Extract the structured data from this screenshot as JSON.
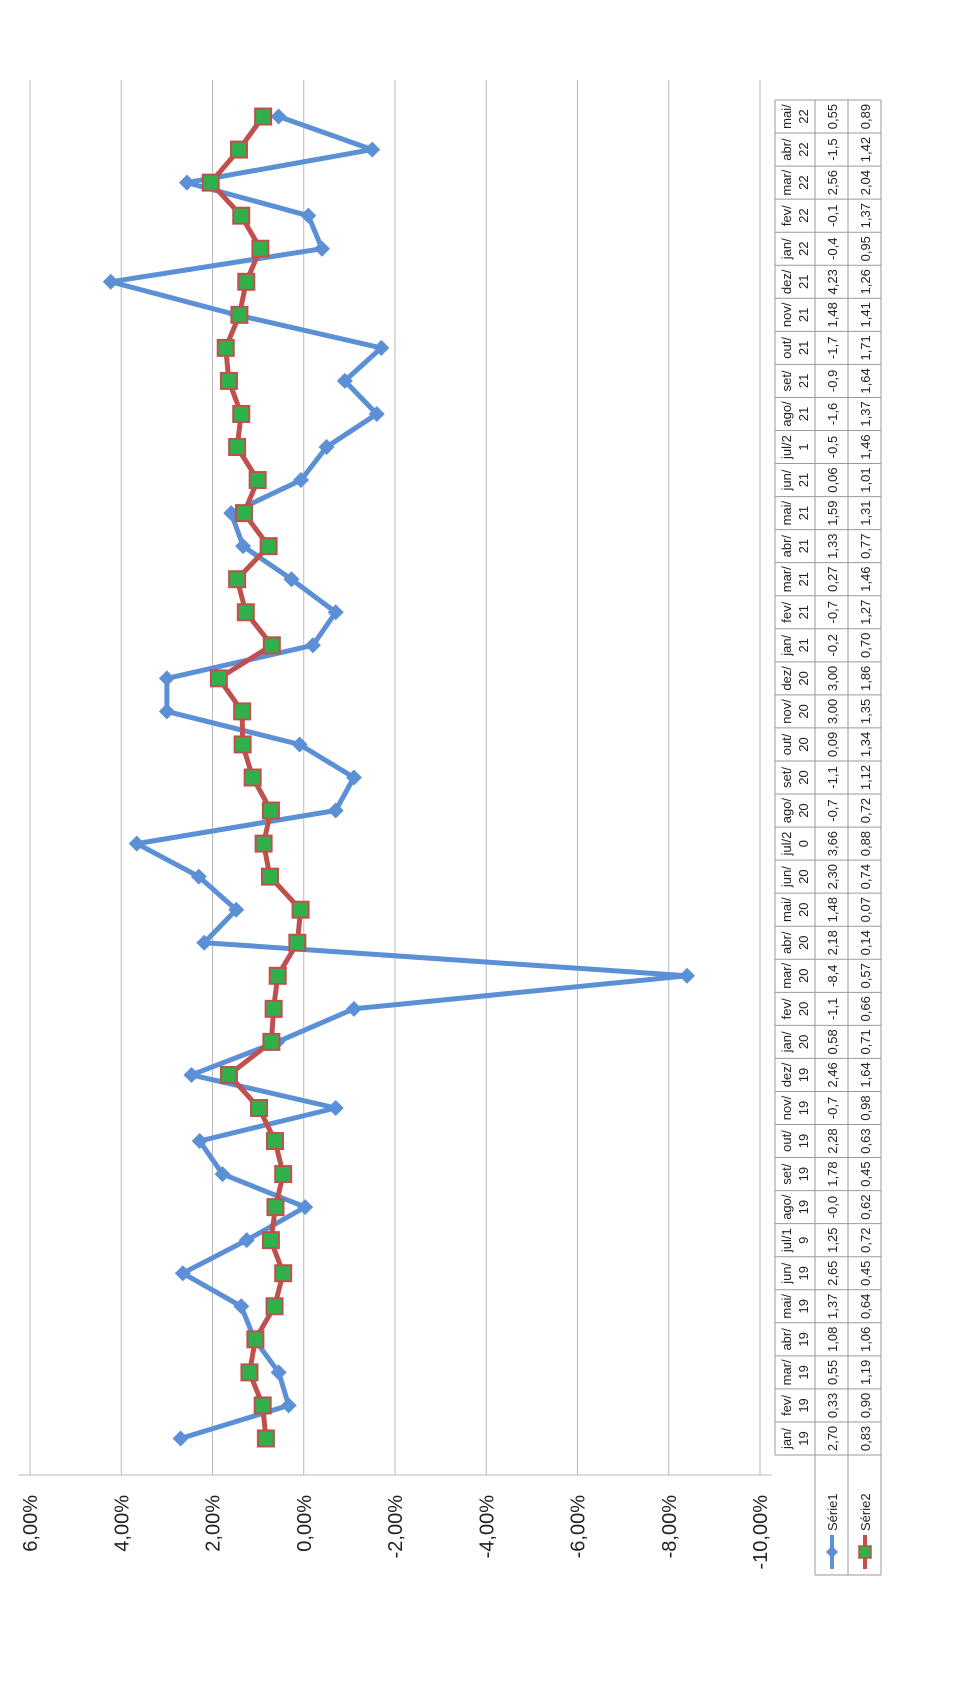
{
  "chart_data": {
    "type": "line",
    "y_axis": {
      "min": -10,
      "max": 6,
      "tick_step": 2,
      "tick_labels": [
        "-10,00%",
        "-8,00%",
        "-6,00%",
        "-4,00%",
        "-2,00%",
        "0,00%",
        "2,00%",
        "4,00%",
        "6,00%"
      ]
    },
    "grid": "horizontal",
    "legend_placement": "data table",
    "categories_top": [
      "jan/",
      "fev/",
      "mar/",
      "abr/",
      "mai/",
      "jun/",
      "jul/1",
      "ago/",
      "set/",
      "out/",
      "nov/",
      "dez/",
      "jan/",
      "fev/",
      "mar/",
      "abr/",
      "mai/",
      "jun/",
      "jul/2",
      "ago/",
      "set/",
      "out/",
      "nov/",
      "dez/",
      "jan/",
      "fev/",
      "mar/",
      "abr/",
      "mai/",
      "jun/",
      "jul/2",
      "ago/",
      "set/",
      "out/",
      "nov/",
      "dez/",
      "jan/",
      "fev/",
      "mar/",
      "abr/",
      "mai/"
    ],
    "categories_bottom": [
      "19",
      "19",
      "19",
      "19",
      "19",
      "19",
      "9",
      "19",
      "19",
      "19",
      "19",
      "19",
      "20",
      "20",
      "20",
      "20",
      "20",
      "20",
      "0",
      "20",
      "20",
      "20",
      "20",
      "20",
      "21",
      "21",
      "21",
      "21",
      "21",
      "21",
      "1",
      "21",
      "21",
      "21",
      "21",
      "21",
      "22",
      "22",
      "22",
      "22",
      "22"
    ],
    "series": [
      {
        "name": "Série1",
        "color": "#5b8fd6",
        "marker": "diamond",
        "values": [
          2.7,
          0.33,
          0.55,
          1.08,
          1.37,
          2.65,
          1.25,
          -0.03,
          1.78,
          2.28,
          -0.7,
          2.46,
          0.58,
          -1.1,
          -8.4,
          2.18,
          1.48,
          2.3,
          3.66,
          -0.7,
          -1.1,
          0.09,
          3.0,
          3.0,
          -0.2,
          -0.7,
          0.27,
          1.33,
          1.59,
          0.06,
          -0.5,
          -1.6,
          -0.9,
          -1.7,
          1.48,
          4.23,
          -0.4,
          -0.1,
          2.56,
          -1.5,
          0.55
        ],
        "labels": [
          "2,70",
          "0,33",
          "0,55",
          "1,08",
          "1,37",
          "2,65",
          "1,25",
          "-0,0",
          "1,78",
          "2,28",
          "-0,7",
          "2,46",
          "0,58",
          "-1,1",
          "-8,4",
          "2,18",
          "1,48",
          "2,30",
          "3,66",
          "-0,7",
          "-1,1",
          "0,09",
          "3,00",
          "3,00",
          "-0,2",
          "-0,7",
          "0,27",
          "1,33",
          "1,59",
          "0,06",
          "-0,5",
          "-1,6",
          "-0,9",
          "-1,7",
          "1,48",
          "4,23",
          "-0,4",
          "-0,1",
          "2,56",
          "-1,5",
          "0,55"
        ]
      },
      {
        "name": "Série2",
        "color": "#c0504d",
        "marker": "square",
        "marker_color": "#2fb04a",
        "values": [
          0.83,
          0.9,
          1.19,
          1.06,
          0.64,
          0.45,
          0.72,
          0.62,
          0.45,
          0.63,
          0.98,
          1.64,
          0.71,
          0.66,
          0.57,
          0.14,
          0.07,
          0.74,
          0.88,
          0.72,
          1.12,
          1.34,
          1.35,
          1.86,
          0.7,
          1.27,
          1.46,
          0.77,
          1.31,
          1.01,
          1.46,
          1.37,
          1.64,
          1.71,
          1.41,
          1.26,
          0.95,
          1.37,
          2.04,
          1.42,
          0.89
        ],
        "labels": [
          "0,83",
          "0,90",
          "1,19",
          "1,06",
          "0,64",
          "0,45",
          "0,72",
          "0,62",
          "0,45",
          "0,63",
          "0,98",
          "1,64",
          "0,71",
          "0,66",
          "0,57",
          "0,14",
          "0,07",
          "0,74",
          "0,88",
          "0,72",
          "1,12",
          "1,34",
          "1,35",
          "1,86",
          "0,70",
          "1,27",
          "1,46",
          "0,77",
          "1,31",
          "1,01",
          "1,46",
          "1,37",
          "1,64",
          "1,71",
          "1,41",
          "1,26",
          "0,95",
          "1,37",
          "2,04",
          "1,42",
          "0,89"
        ]
      }
    ]
  }
}
